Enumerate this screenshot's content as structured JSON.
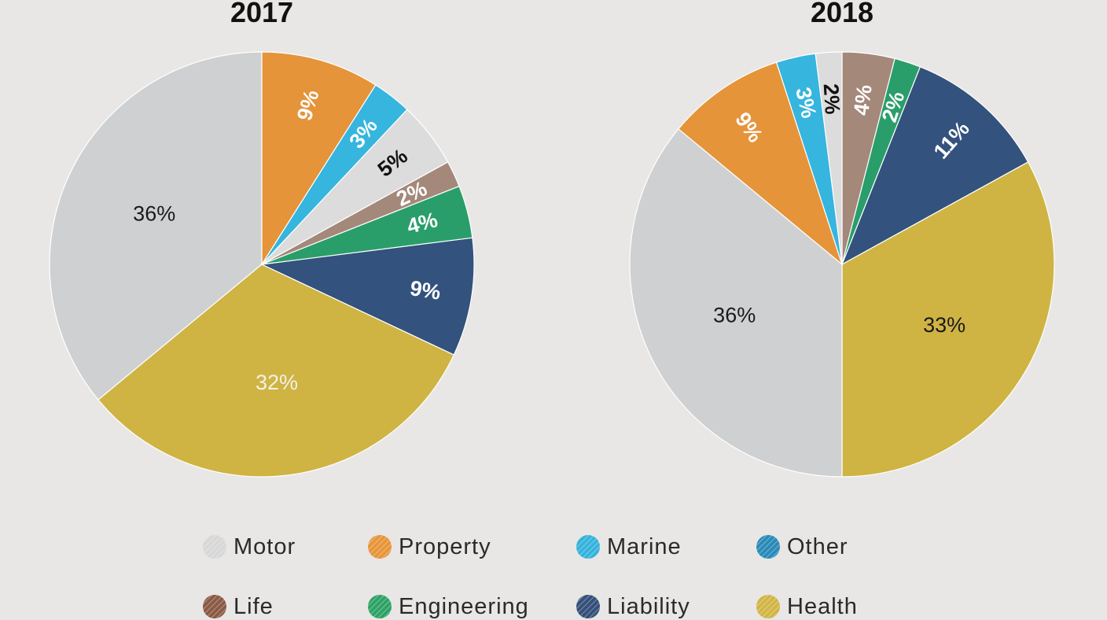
{
  "chart_data": [
    {
      "type": "pie",
      "title": "2017",
      "slices": [
        {
          "category": "Motor",
          "value": 36,
          "label": "36%",
          "label_color": "#1a1a1a"
        },
        {
          "category": "Health",
          "value": 32,
          "label": "32%",
          "label_color": "#f4f1e6"
        },
        {
          "category": "Liability",
          "value": 9,
          "label": "9%",
          "label_color": "#ffffff"
        },
        {
          "category": "Engineering",
          "value": 4,
          "label": "4%",
          "label_color": "#ffffff"
        },
        {
          "category": "Life",
          "value": 2,
          "label": "2%",
          "label_color": "#ffffff"
        },
        {
          "category": "Other",
          "value": 5,
          "label": "5%",
          "label_color": "#111111"
        },
        {
          "category": "Marine",
          "value": 3,
          "label": "3%",
          "label_color": "#ffffff"
        },
        {
          "category": "Property",
          "value": 9,
          "label": "9%",
          "label_color": "#ffffff"
        }
      ]
    },
    {
      "type": "pie",
      "title": "2018",
      "slices": [
        {
          "category": "Life",
          "value": 4,
          "label": "4%",
          "label_color": "#ffffff"
        },
        {
          "category": "Engineering",
          "value": 2,
          "label": "2%",
          "label_color": "#ffffff"
        },
        {
          "category": "Liability",
          "value": 11,
          "label": "11%",
          "label_color": "#ffffff"
        },
        {
          "category": "Health",
          "value": 33,
          "label": "33%",
          "label_color": "#1a1a1a"
        },
        {
          "category": "Motor",
          "value": 36,
          "label": "36%",
          "label_color": "#1a1a1a"
        },
        {
          "category": "Property",
          "value": 9,
          "label": "9%",
          "label_color": "#ffffff"
        },
        {
          "category": "Marine",
          "value": 3,
          "label": "3%",
          "label_color": "#ffffff"
        },
        {
          "category": "Other",
          "value": 2,
          "label": "2%",
          "label_color": "#111111"
        }
      ]
    }
  ],
  "legend": {
    "placement": "bottom",
    "items": [
      {
        "label": "Motor",
        "color": "#d7d7d7"
      },
      {
        "label": "Property",
        "color": "#e8953a"
      },
      {
        "label": "Marine",
        "color": "#36b3dc"
      },
      {
        "label": "Other",
        "color": "#2a8ab8"
      },
      {
        "label": "Life",
        "color": "#8a5a45"
      },
      {
        "label": "Engineering",
        "color": "#2ea266"
      },
      {
        "label": "Liability",
        "color": "#34507a"
      },
      {
        "label": "Health",
        "color": "#d2b546"
      }
    ]
  },
  "colors": {
    "background": "#e8e7e5",
    "Motor": "#cfd0d1",
    "Health": "#cfb444",
    "Liability": "#33527d",
    "Engineering": "#2a9e6a",
    "Life": "#a4887a",
    "Other": "#dcdcdc",
    "Marine": "#36b5de",
    "Property": "#e5943a"
  }
}
